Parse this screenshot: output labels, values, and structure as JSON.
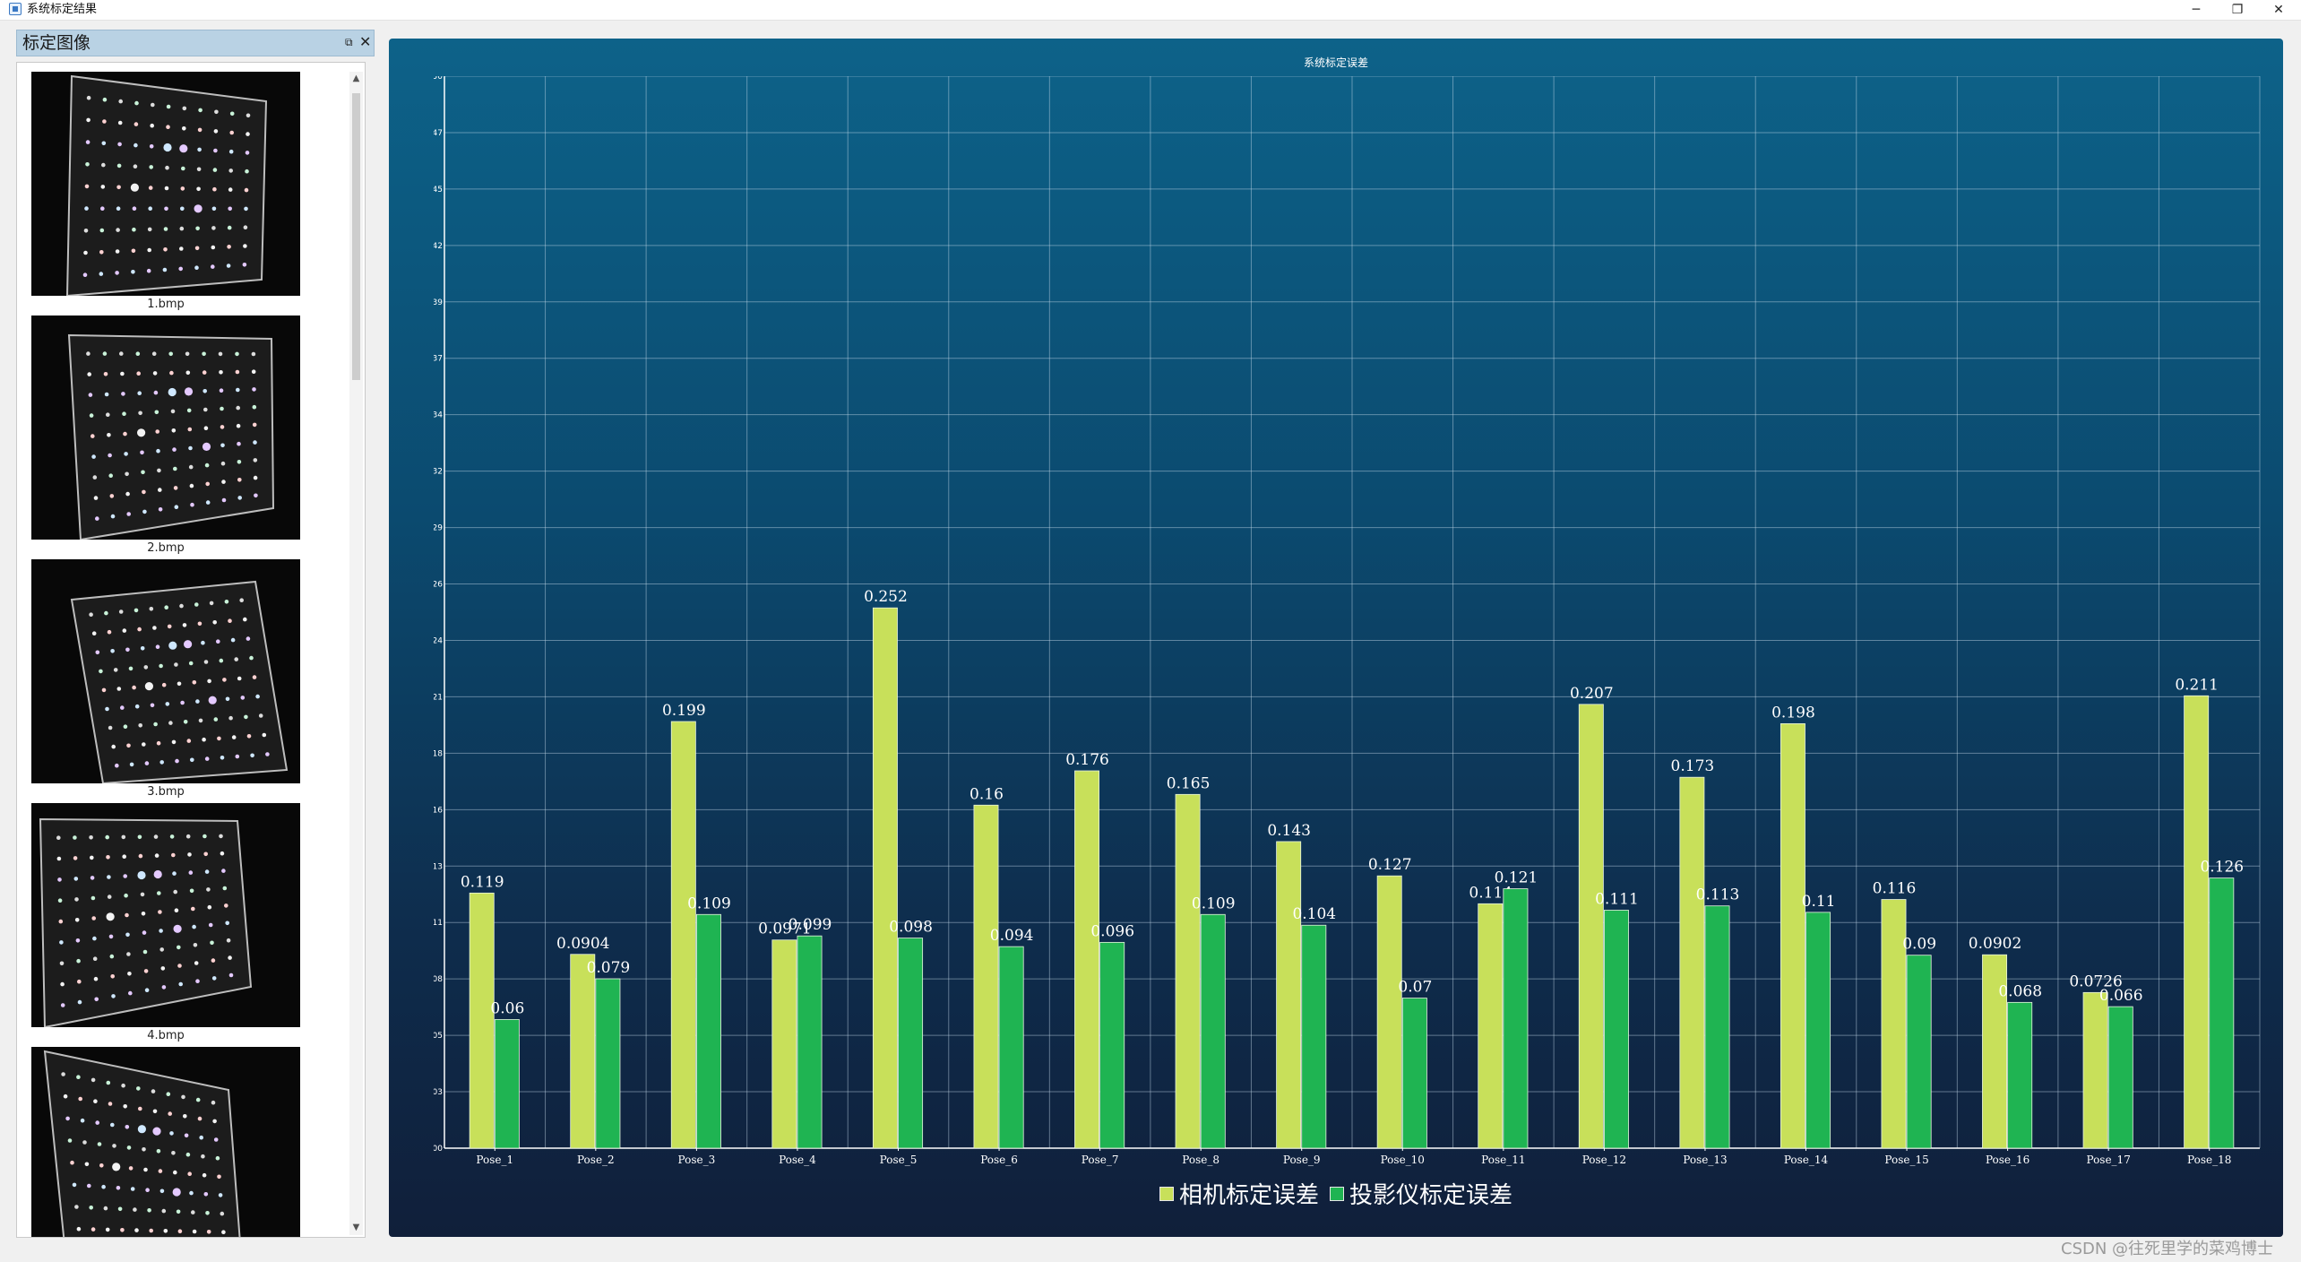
{
  "window": {
    "title": "系统标定结果",
    "minimize": "─",
    "restore": "❐",
    "close": "✕"
  },
  "dock": {
    "title": "标定图像",
    "float_icon": "⧉",
    "close_icon": "✕",
    "scroll_up": "▲",
    "scroll_down": "▼",
    "images": [
      {
        "caption": "1.bmp"
      },
      {
        "caption": "2.bmp"
      },
      {
        "caption": "3.bmp"
      },
      {
        "caption": "4.bmp"
      },
      {
        "caption": ""
      }
    ]
  },
  "chart": {
    "title": "系统标定误差"
  },
  "chart_data": {
    "type": "bar",
    "title": "系统标定误差",
    "xlabel": "",
    "ylabel": "",
    "ylim": [
      0,
      0.5
    ],
    "y_ticks": [
      "0.00",
      "0.03",
      "0.05",
      "0.08",
      "0.11",
      "0.13",
      "0.16",
      "0.18",
      "0.21",
      "0.24",
      "0.26",
      "0.29",
      "0.32",
      "0.34",
      "0.37",
      "0.39",
      "0.42",
      "0.45",
      "0.47",
      "0.50"
    ],
    "grid": true,
    "legend_position": "bottom",
    "categories": [
      "Pose_1",
      "Pose_2",
      "Pose_3",
      "Pose_4",
      "Pose_5",
      "Pose_6",
      "Pose_7",
      "Pose_8",
      "Pose_9",
      "Pose_10",
      "Pose_11",
      "Pose_12",
      "Pose_13",
      "Pose_14",
      "Pose_15",
      "Pose_16",
      "Pose_17",
      "Pose_18"
    ],
    "series": [
      {
        "name": "相机标定误差",
        "color": "#c8e05a",
        "values": [
          0.119,
          0.0904,
          0.199,
          0.0971,
          0.252,
          0.16,
          0.176,
          0.165,
          0.143,
          0.127,
          0.114,
          0.207,
          0.173,
          0.198,
          0.116,
          0.0902,
          0.0726,
          0.211
        ],
        "labels": [
          "0.119",
          "0.0904",
          "0.199",
          "0.0971",
          "0.252",
          "0.16",
          "0.176",
          "0.165",
          "0.143",
          "0.127",
          "0.114",
          "0.207",
          "0.173",
          "0.198",
          "0.116",
          "0.0902",
          "0.0726",
          "0.211"
        ]
      },
      {
        "name": "投影仪标定误差",
        "color": "#1fb452",
        "values": [
          0.06,
          0.079,
          0.109,
          0.099,
          0.098,
          0.094,
          0.096,
          0.109,
          0.104,
          0.07,
          0.121,
          0.111,
          0.113,
          0.11,
          0.09,
          0.068,
          0.066,
          0.126
        ],
        "labels": [
          "0.06",
          "0.079",
          "0.109",
          "0.099",
          "0.098",
          "0.094",
          "0.096",
          "0.109",
          "0.104",
          "0.07",
          "0.121",
          "0.111",
          "0.113",
          "0.11",
          "0.09",
          "0.068",
          "0.066",
          "0.126"
        ]
      }
    ]
  },
  "watermark": "CSDN @往死里学的菜鸡博士"
}
